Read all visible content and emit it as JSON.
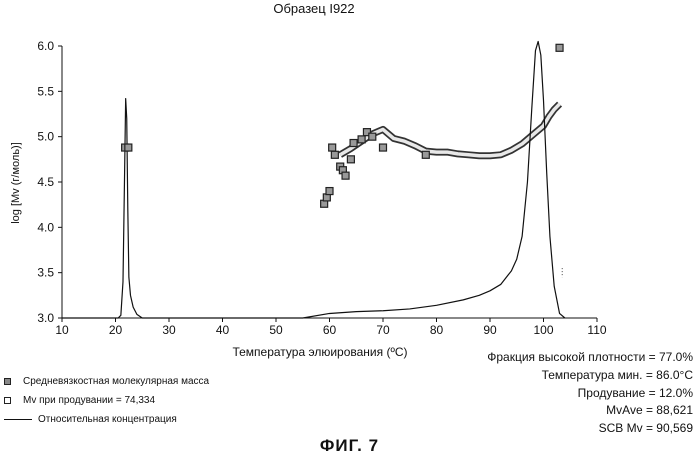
{
  "chart_data": {
    "type": "line",
    "title": "Образец I922",
    "xlabel": "Температура элюирования (ºC)",
    "ylabel": "log [Mv (г/моль)]",
    "xlim": [
      10,
      110
    ],
    "ylim": [
      3.0,
      6.0
    ],
    "x_ticks": [
      "10",
      "20",
      "30",
      "40",
      "50",
      "60",
      "70",
      "80",
      "90",
      "100",
      "110"
    ],
    "y_ticks": [
      "3.0",
      "3.5",
      "4.0",
      "4.5",
      "5.0",
      "5.5",
      "6.0"
    ],
    "grid": false,
    "series": [
      {
        "name": "Средневязкостная молекулярная масса",
        "kind": "points",
        "marker": "filled-square",
        "x": [
          21.8,
          22.4,
          59.0,
          59.5,
          60.0,
          60.5,
          61.0,
          62.0,
          62.5,
          63.0,
          64.0,
          64.5,
          66.0,
          67.0,
          68.0,
          70.0,
          78.0,
          103.0
        ],
        "y": [
          4.88,
          4.88,
          4.26,
          4.33,
          4.4,
          4.88,
          4.8,
          4.67,
          4.63,
          4.57,
          4.75,
          4.93,
          4.97,
          5.05,
          5.0,
          4.88,
          4.8,
          5.98
        ]
      },
      {
        "name": "Mv при продувании = 74,334",
        "kind": "band",
        "marker": "open-square",
        "x": [
          62,
          64,
          66,
          68,
          70,
          72,
          74,
          76,
          78,
          80,
          82,
          84,
          86,
          88,
          90,
          92,
          94,
          96,
          98,
          100,
          101,
          102,
          103
        ],
        "y": [
          4.8,
          4.87,
          4.95,
          5.03,
          5.08,
          4.98,
          4.95,
          4.9,
          4.84,
          4.83,
          4.83,
          4.81,
          4.8,
          4.79,
          4.79,
          4.8,
          4.85,
          4.92,
          5.02,
          5.12,
          5.22,
          5.3,
          5.36
        ]
      },
      {
        "name": "Относительная концентрация",
        "kind": "line",
        "x": [
          10,
          20.5,
          21.0,
          21.4,
          21.7,
          21.9,
          22.1,
          22.3,
          22.5,
          22.8,
          23.3,
          24.0,
          25.0,
          55,
          60,
          65,
          70,
          75,
          80,
          85,
          88,
          90,
          92,
          94,
          95,
          96,
          97,
          97.8,
          98.5,
          99.0,
          99.5,
          100.0,
          100.6,
          101.2,
          102.0,
          103.0,
          104.0
        ],
        "y": [
          3.0,
          3.0,
          3.03,
          3.4,
          4.6,
          5.42,
          5.2,
          4.2,
          3.45,
          3.25,
          3.12,
          3.04,
          3.0,
          3.0,
          3.05,
          3.07,
          3.08,
          3.1,
          3.14,
          3.2,
          3.25,
          3.3,
          3.37,
          3.52,
          3.65,
          3.9,
          4.5,
          5.3,
          5.95,
          6.05,
          5.9,
          5.4,
          4.6,
          3.9,
          3.35,
          3.05,
          3.0
        ]
      }
    ],
    "legend_position": "bottom-left",
    "legend": {
      "labels": [
        "Средневязкостная молекулярная масса",
        "Mv при продувании = 74,334",
        "Относительная концентрация"
      ]
    },
    "annotations": [
      "Фракция высокой плотности = 77.0%",
      "Температура мин. = 86.0°C",
      "Продувание = 12.0%",
      "MvAve = 88,621",
      "SCB Mv = 90,569"
    ]
  },
  "figure_caption": "ФИГ. 7"
}
